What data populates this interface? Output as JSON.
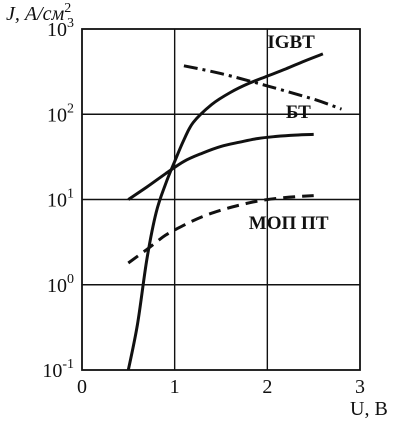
{
  "chart_data": {
    "type": "line",
    "xlabel": "U, В",
    "ylabel": "J, А/см",
    "ylabel_sup": "2",
    "xlim": [
      0,
      3
    ],
    "ylim": [
      0.1,
      1000
    ],
    "y_scale": "log",
    "grid": true,
    "x_ticks": [
      {
        "value": 0,
        "label": "0"
      },
      {
        "value": 1,
        "label": "1"
      },
      {
        "value": 2,
        "label": "2"
      },
      {
        "value": 3,
        "label": "3"
      }
    ],
    "y_ticks": [
      {
        "value": 0.1,
        "base": "10",
        "exp": "-1"
      },
      {
        "value": 1,
        "base": "10",
        "exp": "0"
      },
      {
        "value": 10,
        "base": "10",
        "exp": "1"
      },
      {
        "value": 100,
        "base": "10",
        "exp": "2"
      },
      {
        "value": 1000,
        "base": "10",
        "exp": "3"
      }
    ],
    "series": [
      {
        "name": "IGBT",
        "style": "solid",
        "color": "#111111",
        "points": [
          [
            0.5,
            0.1
          ],
          [
            0.6,
            0.35
          ],
          [
            0.7,
            2.0
          ],
          [
            0.8,
            7.0
          ],
          [
            0.9,
            15
          ],
          [
            1.0,
            28
          ],
          [
            1.1,
            50
          ],
          [
            1.2,
            80
          ],
          [
            1.4,
            130
          ],
          [
            1.6,
            180
          ],
          [
            1.8,
            230
          ],
          [
            2.0,
            280
          ],
          [
            2.2,
            340
          ],
          [
            2.4,
            420
          ],
          [
            2.6,
            510
          ]
        ]
      },
      {
        "name": "IGBT",
        "style": "dashdot",
        "color": "#111111",
        "points": [
          [
            1.1,
            370
          ],
          [
            1.5,
            300
          ],
          [
            2.0,
            215
          ],
          [
            2.5,
            150
          ],
          [
            2.8,
            115
          ]
        ]
      },
      {
        "name": "БТ",
        "style": "solid",
        "color": "#111111",
        "points": [
          [
            0.5,
            10
          ],
          [
            0.7,
            14
          ],
          [
            0.9,
            20
          ],
          [
            1.1,
            28
          ],
          [
            1.3,
            35
          ],
          [
            1.5,
            42
          ],
          [
            1.7,
            47
          ],
          [
            1.9,
            52
          ],
          [
            2.1,
            55
          ],
          [
            2.3,
            57
          ],
          [
            2.5,
            58
          ]
        ]
      },
      {
        "name": "МОП ПТ",
        "style": "dashed",
        "color": "#111111",
        "points": [
          [
            0.5,
            1.8
          ],
          [
            0.7,
            2.6
          ],
          [
            0.9,
            3.8
          ],
          [
            1.1,
            5.0
          ],
          [
            1.3,
            6.3
          ],
          [
            1.5,
            7.5
          ],
          [
            1.7,
            8.6
          ],
          [
            1.9,
            9.6
          ],
          [
            2.1,
            10.3
          ],
          [
            2.3,
            10.8
          ],
          [
            2.5,
            11.1
          ]
        ]
      }
    ],
    "labels": [
      {
        "text": "IGBT",
        "x": 2.0,
        "y": 600
      },
      {
        "text": "БТ",
        "x": 2.2,
        "y": 90
      },
      {
        "text": "МОП ПТ",
        "x": 1.8,
        "y": 4.5
      }
    ]
  }
}
